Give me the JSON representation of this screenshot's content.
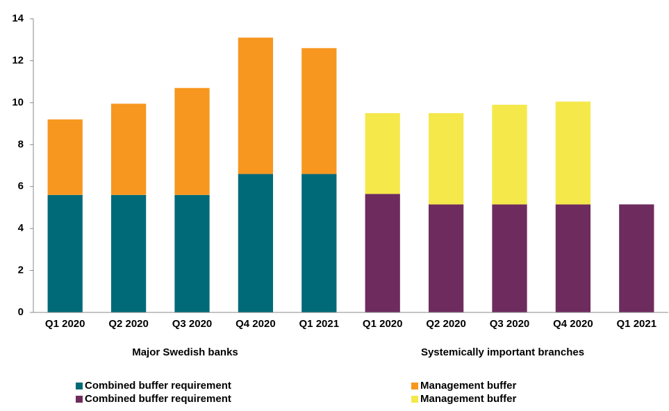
{
  "chart_data": {
    "type": "bar",
    "stacked": true,
    "categories": [
      "Q1 2020",
      "Q2 2020",
      "Q3 2020",
      "Q4 2020",
      "Q1 2021",
      "Q1 2020",
      "Q2 2020",
      "Q3 2020",
      "Q4 2020",
      "Q1 2021"
    ],
    "group_labels": [
      "Major Swedish banks",
      "Systemically important branches"
    ],
    "series": [
      {
        "name": "Combined buffer requirement",
        "color": "#006a78",
        "values": [
          5.6,
          5.6,
          5.6,
          6.6,
          6.6,
          null,
          null,
          null,
          null,
          null
        ]
      },
      {
        "name": "Management buffer",
        "color": "#f7971f",
        "values": [
          3.6,
          4.35,
          5.1,
          6.5,
          6.0,
          null,
          null,
          null,
          null,
          null
        ]
      },
      {
        "name": "Combined buffer requirement",
        "color": "#6e2c5e",
        "values": [
          null,
          null,
          null,
          null,
          null,
          5.65,
          5.15,
          5.15,
          5.15,
          5.15
        ]
      },
      {
        "name": "Management buffer",
        "color": "#f5e84a",
        "values": [
          null,
          null,
          null,
          null,
          null,
          3.85,
          4.35,
          4.75,
          4.9,
          null
        ]
      }
    ],
    "ylim": [
      0,
      14
    ],
    "yticks": [
      0,
      2,
      4,
      6,
      8,
      10,
      12,
      14
    ],
    "grid": false
  }
}
